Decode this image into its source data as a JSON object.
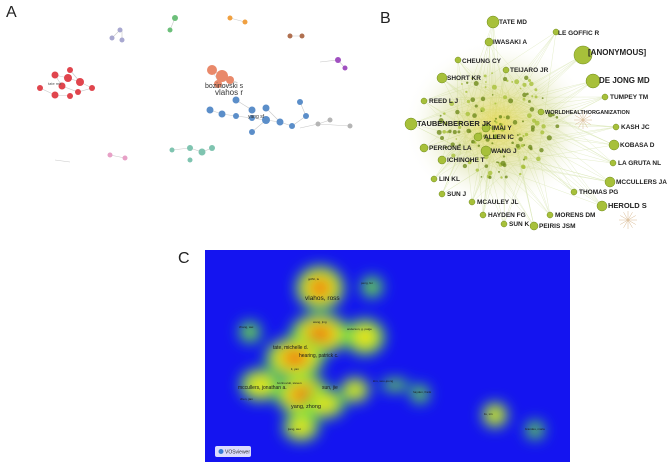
{
  "panels": {
    "a": {
      "label": "A",
      "labels": [
        "bozinovski s",
        "vlahos r",
        "yang sf",
        "tate md"
      ]
    },
    "b": {
      "label": "B",
      "labels": [
        "TATE MD",
        "LE GOFFIC R",
        "IWASAKI A",
        "[ANONYMOUS]",
        "CHEUNG CY",
        "TEIJARO JR",
        "SHORT KR",
        "DE JONG MD",
        "TUMPEY TM",
        "REED L J",
        "WORLDHEALTHORGANIZATION",
        "TAUBENBERGER JK",
        "IMAI Y",
        "KASH JC",
        "ALLEN IC",
        "PERRONE LA",
        "KOBASA D",
        "WANG J",
        "ICHINOHE T",
        "LA GRUTA NL",
        "LIN KL",
        "MCCULLERS JA",
        "SUN J",
        "THOMAS PG",
        "MCAULEY JL",
        "HEROLD S",
        "HAYDEN FG",
        "MORENS DM",
        "SUN K",
        "PEIRIS JSM"
      ]
    },
    "c": {
      "label": "C",
      "labels": [
        "vlahos, ross",
        "tate, michelle d.",
        "hearing, patrick c.",
        "mccullers, jonathan a.",
        "sun, jie",
        "yang, zhong",
        "bozinovski, steven",
        "anderson, g. paige",
        "goffic, le",
        "peng, fei",
        "zhang, wei",
        "hayden, frank",
        "liu, xin",
        "brandes, marie",
        "jiang, wei",
        "kim, woo-joong",
        "li, yan",
        "wang, jing",
        "chen, jian"
      ],
      "watermark": "VOSviewer"
    }
  },
  "colors": {
    "b_node": "#a7c03a",
    "b_node_dark": "#6f8b1d",
    "b_hub": "#d8d040",
    "c_background": "#1414f0"
  }
}
